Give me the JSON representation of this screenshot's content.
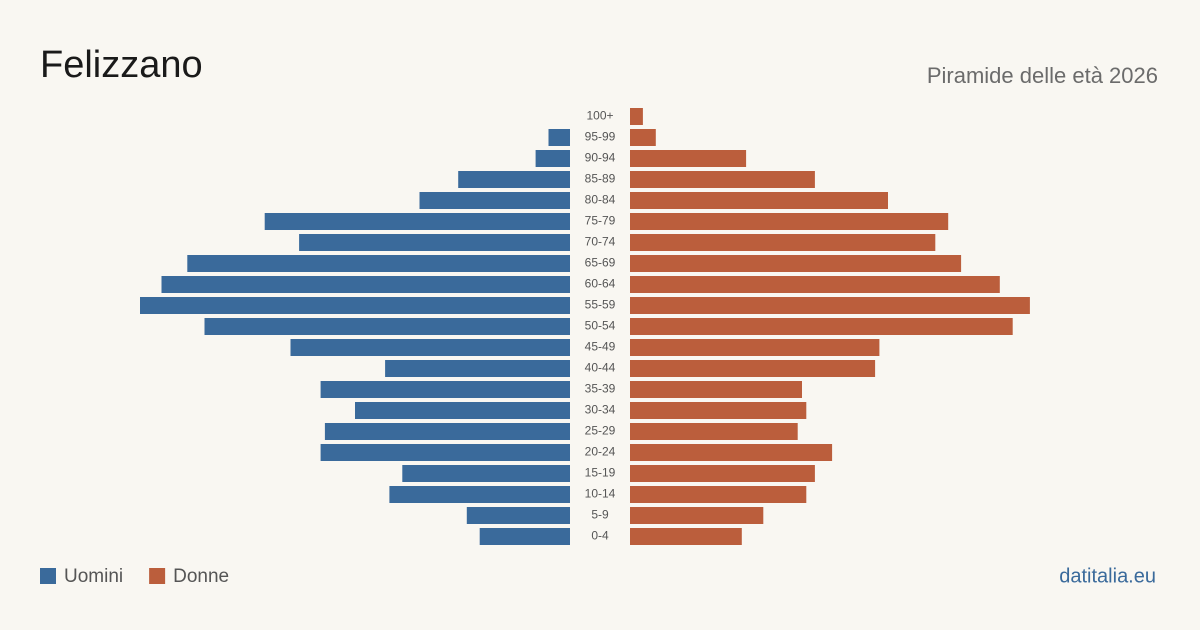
{
  "chart_data": {
    "type": "pyramid",
    "title": "Felizzano",
    "subtitle": "Piramide delle età 2026",
    "source": "datitalia.eu",
    "categories": [
      "100+",
      "95-99",
      "90-94",
      "85-89",
      "80-84",
      "75-79",
      "70-74",
      "65-69",
      "60-64",
      "55-59",
      "50-54",
      "45-49",
      "40-44",
      "35-39",
      "30-34",
      "25-29",
      "20-24",
      "15-19",
      "10-14",
      "5-9",
      "0-4"
    ],
    "series": [
      {
        "name": "Uomini",
        "color": "#3a6a9b",
        "values": [
          0,
          5,
          8,
          26,
          35,
          71,
          63,
          89,
          95,
          100,
          85,
          65,
          43,
          58,
          50,
          57,
          58,
          39,
          42,
          24,
          21
        ]
      },
      {
        "name": "Donne",
        "color": "#bb5e3c",
        "values": [
          3,
          6,
          27,
          43,
          60,
          74,
          71,
          77,
          86,
          93,
          89,
          58,
          57,
          40,
          41,
          39,
          47,
          43,
          41,
          31,
          26
        ]
      }
    ]
  }
}
